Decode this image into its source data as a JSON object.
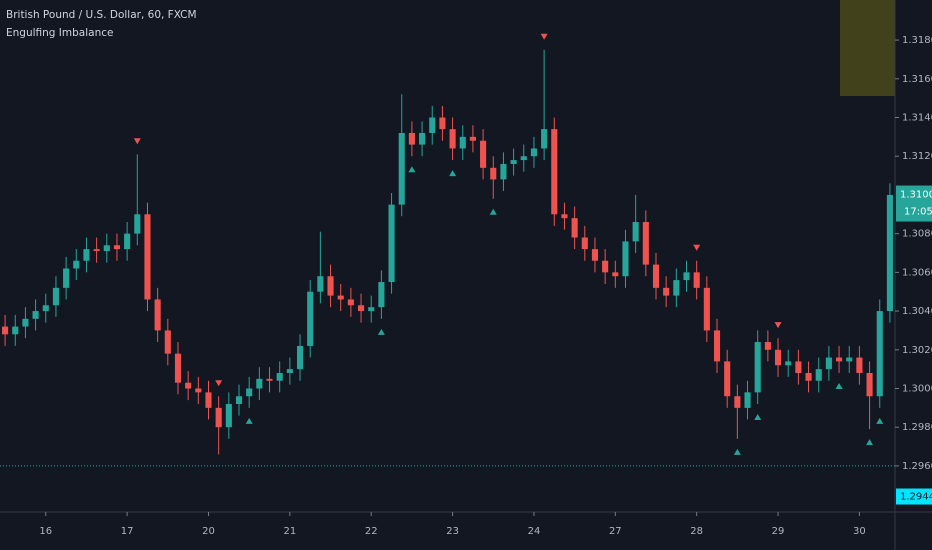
{
  "chart_data": {
    "type": "candlestick",
    "title": "British Pound / U.S. Dollar, 60, FXCM",
    "subtitle": "Engulfing Imbalance",
    "up_color": "#26a69a",
    "down_color": "#ef5350",
    "open": [
      1.3032,
      1.3028,
      1.3032,
      1.3036,
      1.304,
      1.3043,
      1.3052,
      1.3062,
      1.3066,
      1.3072,
      1.3071,
      1.3074,
      1.3072,
      1.308,
      1.309,
      1.3046,
      1.303,
      1.3018,
      1.3003,
      1.3,
      1.2998,
      1.299,
      1.298,
      1.2992,
      1.2996,
      1.3,
      1.3005,
      1.3004,
      1.3008,
      1.301,
      1.3022,
      1.305,
      1.3058,
      1.3048,
      1.3046,
      1.3043,
      1.304,
      1.3042,
      1.3055,
      1.3095,
      1.3132,
      1.3126,
      1.3132,
      1.314,
      1.3134,
      1.3124,
      1.313,
      1.3128,
      1.3114,
      1.3108,
      1.3116,
      1.3118,
      1.312,
      1.3124,
      1.3134,
      1.309,
      1.3088,
      1.3078,
      1.3072,
      1.3066,
      1.306,
      1.3058,
      1.3076,
      1.3086,
      1.3064,
      1.3052,
      1.3048,
      1.3056,
      1.306,
      1.3052,
      1.303,
      1.3014,
      1.2996,
      1.299,
      1.2998,
      1.3024,
      1.302,
      1.3012,
      1.3014,
      1.3008,
      1.3004,
      1.301,
      1.3016,
      1.3014,
      1.3016,
      1.3008,
      1.2996,
      1.304
    ],
    "high": [
      1.3038,
      1.3038,
      1.3042,
      1.3046,
      1.3049,
      1.3058,
      1.3068,
      1.3072,
      1.3078,
      1.3078,
      1.308,
      1.308,
      1.3086,
      1.3121,
      1.3096,
      1.3052,
      1.3036,
      1.3024,
      1.3009,
      1.3006,
      1.3004,
      1.2996,
      1.2998,
      1.3002,
      1.3006,
      1.3011,
      1.3011,
      1.3014,
      1.3016,
      1.3028,
      1.3056,
      1.3081,
      1.3064,
      1.3054,
      1.3052,
      1.3049,
      1.3048,
      1.3061,
      1.3101,
      1.3152,
      1.3138,
      1.3138,
      1.3146,
      1.3146,
      1.314,
      1.3136,
      1.3136,
      1.3134,
      1.312,
      1.3122,
      1.3124,
      1.3126,
      1.313,
      1.3175,
      1.314,
      1.3096,
      1.3094,
      1.3084,
      1.3078,
      1.3072,
      1.3066,
      1.3082,
      1.31,
      1.3092,
      1.307,
      1.3058,
      1.3062,
      1.3066,
      1.3066,
      1.3058,
      1.3036,
      1.302,
      1.3002,
      1.3004,
      1.303,
      1.303,
      1.3026,
      1.302,
      1.302,
      1.3014,
      1.3016,
      1.3022,
      1.3022,
      1.3022,
      1.3022,
      1.3014,
      1.3046,
      1.3106
    ],
    "low": [
      1.3022,
      1.3022,
      1.3026,
      1.303,
      1.3034,
      1.3037,
      1.3046,
      1.3056,
      1.306,
      1.3065,
      1.3065,
      1.3066,
      1.3066,
      1.3074,
      1.304,
      1.3024,
      1.3012,
      1.2997,
      1.2994,
      1.2992,
      1.2984,
      1.2966,
      1.2974,
      1.2986,
      1.299,
      1.2994,
      1.2998,
      1.2998,
      1.3002,
      1.3004,
      1.3016,
      1.3044,
      1.3042,
      1.304,
      1.3037,
      1.3034,
      1.3034,
      1.3036,
      1.3049,
      1.3089,
      1.312,
      1.312,
      1.3126,
      1.3128,
      1.3118,
      1.3118,
      1.3122,
      1.3108,
      1.3098,
      1.3102,
      1.311,
      1.3112,
      1.3114,
      1.3118,
      1.3084,
      1.3082,
      1.3072,
      1.3066,
      1.306,
      1.3054,
      1.3052,
      1.3052,
      1.307,
      1.3058,
      1.3046,
      1.3042,
      1.3042,
      1.305,
      1.3046,
      1.3024,
      1.3008,
      1.299,
      1.2974,
      1.2984,
      1.2992,
      1.3014,
      1.3006,
      1.3006,
      1.3002,
      1.2998,
      1.2998,
      1.3004,
      1.3008,
      1.3008,
      1.3002,
      1.2979,
      1.299,
      1.3034
    ],
    "close": [
      1.3028,
      1.3032,
      1.3036,
      1.304,
      1.3043,
      1.3052,
      1.3062,
      1.3066,
      1.3072,
      1.3071,
      1.3074,
      1.3072,
      1.308,
      1.309,
      1.3046,
      1.303,
      1.3018,
      1.3003,
      1.3,
      1.2998,
      1.299,
      1.298,
      1.2992,
      1.2996,
      1.3,
      1.3005,
      1.3004,
      1.3008,
      1.301,
      1.3022,
      1.305,
      1.3058,
      1.3048,
      1.3046,
      1.3043,
      1.304,
      1.3042,
      1.3055,
      1.3095,
      1.3132,
      1.3126,
      1.3132,
      1.314,
      1.3134,
      1.3124,
      1.313,
      1.3128,
      1.3114,
      1.3108,
      1.3116,
      1.3118,
      1.312,
      1.3124,
      1.3134,
      1.309,
      1.3088,
      1.3078,
      1.3072,
      1.3066,
      1.306,
      1.3058,
      1.3076,
      1.3086,
      1.3064,
      1.3052,
      1.3048,
      1.3056,
      1.306,
      1.3052,
      1.303,
      1.3014,
      1.2996,
      1.299,
      1.2998,
      1.3024,
      1.302,
      1.3012,
      1.3014,
      1.3008,
      1.3004,
      1.301,
      1.3016,
      1.3014,
      1.3016,
      1.3008,
      1.2996,
      1.304,
      1.31
    ],
    "bearish_signals": [
      13,
      21,
      53,
      68,
      76
    ],
    "bullish_signals": [
      24,
      37,
      40,
      44,
      48,
      72,
      74,
      82,
      85,
      86
    ],
    "xlim": [
      -0.5,
      87.5
    ],
    "xticks": [
      {
        "value": 4,
        "label": "16"
      },
      {
        "value": 12,
        "label": "17"
      },
      {
        "value": 20,
        "label": "20"
      },
      {
        "value": 28,
        "label": "21"
      },
      {
        "value": 36,
        "label": "22"
      },
      {
        "value": 44,
        "label": "23"
      },
      {
        "value": 52,
        "label": "24"
      },
      {
        "value": 60,
        "label": "27"
      },
      {
        "value": 68,
        "label": "28"
      },
      {
        "value": 76,
        "label": "29"
      },
      {
        "value": 84,
        "label": "30"
      }
    ],
    "ylim": [
      1.29362,
      1.32007
    ],
    "yticks": [
      {
        "value": 1.318,
        "label": "1.31800"
      },
      {
        "value": 1.316,
        "label": "1.31600"
      },
      {
        "value": 1.314,
        "label": "1.31400"
      },
      {
        "value": 1.312,
        "label": "1.31200"
      },
      {
        "value": 1.308,
        "label": "1.30800"
      },
      {
        "value": 1.306,
        "label": "1.30600"
      },
      {
        "value": 1.304,
        "label": "1.30400"
      },
      {
        "value": 1.302,
        "label": "1.30200"
      },
      {
        "value": 1.3,
        "label": "1.30000"
      },
      {
        "value": 1.298,
        "label": "1.29800"
      },
      {
        "value": 1.296,
        "label": "1.29600"
      }
    ],
    "last_price": {
      "value": 1.31002,
      "label": "1.31002"
    },
    "countdown": "17:05",
    "hline": 1.296,
    "low_price": {
      "value": 1.29442,
      "label": "1.29442"
    }
  }
}
